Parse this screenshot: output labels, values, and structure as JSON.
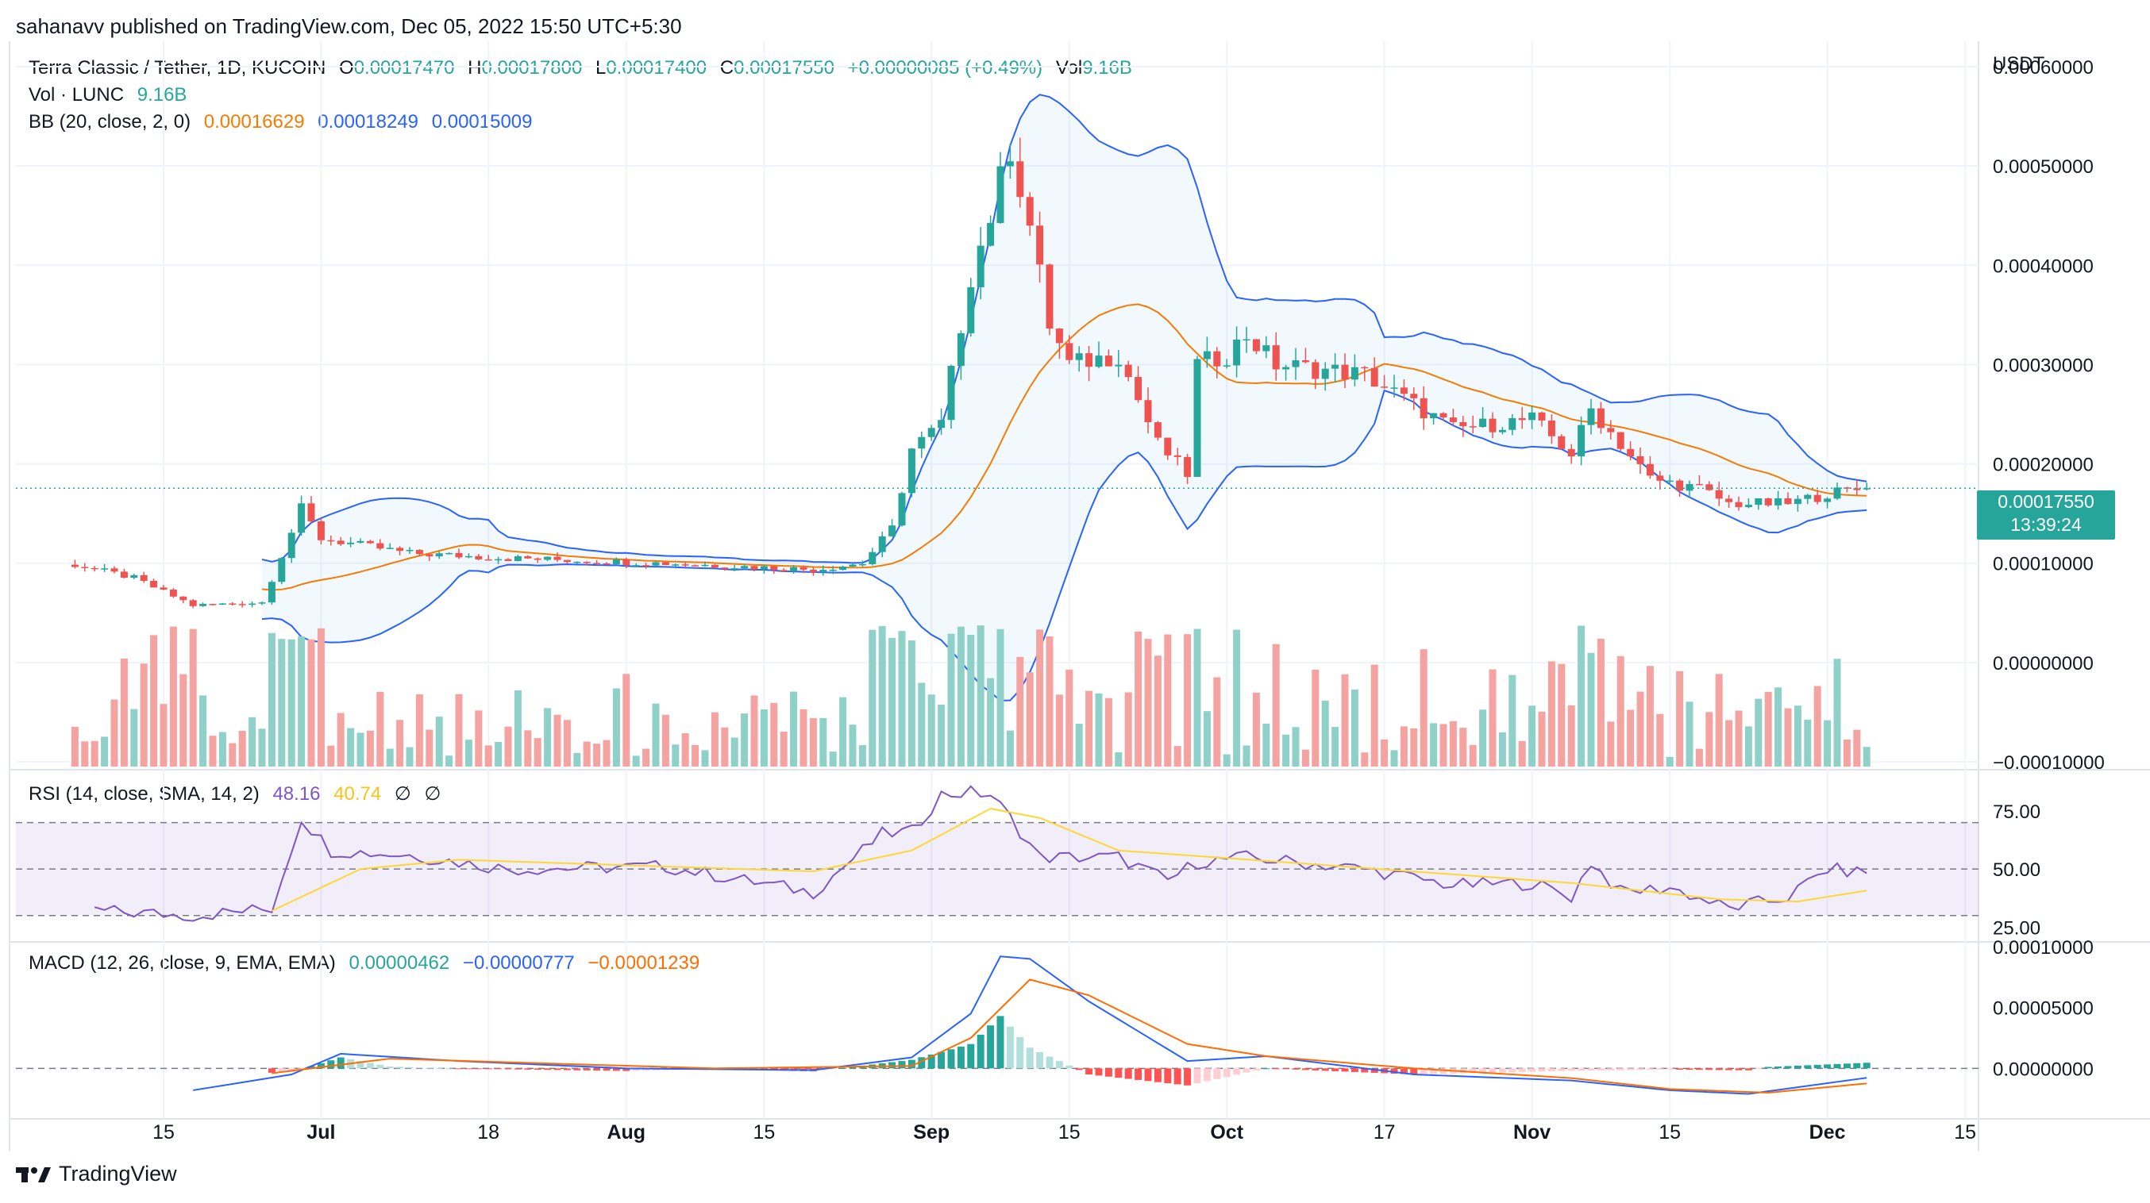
{
  "publisher": "sahanavv published on TradingView.com, Dec 05, 2022 15:50 UTC+5:30",
  "brand": "TradingView",
  "price_tag": {
    "price": "0.00017550",
    "countdown": "13:39:24"
  },
  "colors": {
    "up": "#26a69a",
    "down": "#ef5350",
    "bb_mid": "#f57c00",
    "bb_band": "#2962ff",
    "rsi": "#7e57c2",
    "rsi_ma": "#fdd835",
    "macd": "#2962ff",
    "signal": "#ff6d00",
    "vol_up": "#8fd0c8",
    "vol_down": "#f4a3a1"
  },
  "legend": {
    "symbol": "Terra Classic / Tether, 1D, KUCOIN",
    "o_label": "O",
    "o": "0.00017470",
    "h_label": "H",
    "h": "0.00017800",
    "l_label": "L",
    "l": "0.00017400",
    "c_label": "C",
    "c": "0.00017550",
    "change": "+0.00000085 (+0.49%)",
    "vol_label": "Vol",
    "vol": "9.16B",
    "vol_line_label": "Vol · LUNC",
    "vol_line_value": "9.16B",
    "bb_label": "BB (20, close, 2, 0)",
    "bb_basis": "0.00016629",
    "bb_upper": "0.00018249",
    "bb_lower": "0.00015009",
    "rsi_label": "RSI (14, close, SMA, 14, 2)",
    "rsi_value": "48.16",
    "rsi_ma_value": "40.74",
    "rsi_na1": "∅",
    "rsi_na2": "∅",
    "macd_label": "MACD (12, 26, close, 9, EMA, EMA)",
    "macd_hist": "0.00000462",
    "macd_value": "−0.00000777",
    "macd_signal": "−0.00001239"
  },
  "chart_data": [
    {
      "type": "candlestick",
      "currency": "USDT",
      "x_ticks": [
        "15",
        "Jul",
        "18",
        "Aug",
        "15",
        "Sep",
        "15",
        "Oct",
        "17",
        "Nov",
        "15",
        "Dec",
        "15"
      ],
      "y_ticks": [
        "0.00060000",
        "0.00050000",
        "0.00040000",
        "0.00030000",
        "0.00020000",
        "0.00010000",
        "0.00000000",
        "−0.00010000"
      ],
      "ylim": [
        -0.0001,
        0.0006
      ],
      "date_range": [
        "2022-06-06",
        "2022-12-05"
      ],
      "close_keypoints": [
        [
          "2022-06-06",
          9.85e-05
        ],
        [
          "2022-06-12",
          8.5e-05
        ],
        [
          "2022-06-18",
          5.75e-05
        ],
        [
          "2022-06-25",
          6.05e-05
        ],
        [
          "2022-06-29",
          0.000155
        ],
        [
          "2022-07-01",
          0.000125
        ],
        [
          "2022-07-10",
          0.00011
        ],
        [
          "2022-07-20",
          0.000105
        ],
        [
          "2022-08-05",
          0.0001
        ],
        [
          "2022-08-20",
          9.35e-05
        ],
        [
          "2022-08-25",
          0.0001
        ],
        [
          "2022-08-28",
          0.000135
        ],
        [
          "2022-08-30",
          0.000215
        ],
        [
          "2022-09-02",
          0.00024
        ],
        [
          "2022-09-05",
          0.00039
        ],
        [
          "2022-09-07",
          0.00045
        ],
        [
          "2022-09-09",
          0.00052
        ],
        [
          "2022-09-11",
          0.00044
        ],
        [
          "2022-09-13",
          0.00034
        ],
        [
          "2022-09-15",
          0.0003
        ],
        [
          "2022-09-20",
          0.00031
        ],
        [
          "2022-09-24",
          0.00022
        ],
        [
          "2022-09-27",
          0.00019
        ],
        [
          "2022-09-28",
          0.0003
        ],
        [
          "2022-10-01",
          0.00031
        ],
        [
          "2022-10-03",
          0.00033
        ],
        [
          "2022-10-06",
          0.0003
        ],
        [
          "2022-10-15",
          0.00029
        ],
        [
          "2022-10-24",
          0.000235
        ],
        [
          "2022-11-01",
          0.000245
        ],
        [
          "2022-11-05",
          0.00021
        ],
        [
          "2022-11-07",
          0.000255
        ],
        [
          "2022-11-10",
          0.00022
        ],
        [
          "2022-11-13",
          0.000185
        ],
        [
          "2022-11-18",
          0.000175
        ],
        [
          "2022-11-21",
          0.00016
        ],
        [
          "2022-11-27",
          0.00016
        ],
        [
          "2022-12-01",
          0.00017
        ],
        [
          "2022-12-05",
          0.0001755
        ]
      ],
      "last_ohlc": {
        "open": 0.0001747,
        "high": 0.000178,
        "low": 0.000174,
        "close": 0.0001755
      },
      "bollinger": {
        "period": 20,
        "mult": 2,
        "basis": 0.00016629,
        "upper": 0.00018249,
        "lower": 0.00015009
      },
      "volume_last": "9.16B",
      "grid": true
    },
    {
      "type": "line",
      "name": "RSI (14, close, SMA, 14, 2)",
      "y_ticks": [
        "75.00",
        "50.00",
        "25.00"
      ],
      "bands": [
        30,
        50,
        70
      ],
      "ylim": [
        20,
        90
      ],
      "last_rsi": 48.16,
      "last_ma": 40.74,
      "rsi_keypoints": [
        [
          "2022-06-08",
          32
        ],
        [
          "2022-06-18",
          30
        ],
        [
          "2022-06-26",
          33
        ],
        [
          "2022-06-29",
          72
        ],
        [
          "2022-07-02",
          58
        ],
        [
          "2022-07-10",
          56
        ],
        [
          "2022-07-20",
          50
        ],
        [
          "2022-08-05",
          51
        ],
        [
          "2022-08-20",
          40
        ],
        [
          "2022-08-27",
          65
        ],
        [
          "2022-08-30",
          66
        ],
        [
          "2022-09-02",
          82
        ],
        [
          "2022-09-05",
          83
        ],
        [
          "2022-09-07",
          82
        ],
        [
          "2022-09-09",
          72
        ],
        [
          "2022-09-12",
          55
        ],
        [
          "2022-09-20",
          55
        ],
        [
          "2022-09-25",
          45
        ],
        [
          "2022-09-28",
          53
        ],
        [
          "2022-10-03",
          55
        ],
        [
          "2022-10-15",
          50
        ],
        [
          "2022-10-24",
          43
        ],
        [
          "2022-11-01",
          44
        ],
        [
          "2022-11-05",
          38
        ],
        [
          "2022-11-07",
          53
        ],
        [
          "2022-11-10",
          40
        ],
        [
          "2022-11-15",
          42
        ],
        [
          "2022-11-21",
          33
        ],
        [
          "2022-11-27",
          38
        ],
        [
          "2022-12-01",
          50
        ],
        [
          "2022-12-05",
          48.16
        ]
      ],
      "ma_keypoints": [
        [
          "2022-06-26",
          32
        ],
        [
          "2022-07-05",
          50
        ],
        [
          "2022-07-15",
          54
        ],
        [
          "2022-08-20",
          49
        ],
        [
          "2022-08-30",
          58
        ],
        [
          "2022-09-07",
          76
        ],
        [
          "2022-09-12",
          72
        ],
        [
          "2022-09-20",
          58
        ],
        [
          "2022-10-10",
          52
        ],
        [
          "2022-11-05",
          44
        ],
        [
          "2022-11-20",
          37
        ],
        [
          "2022-11-28",
          36
        ],
        [
          "2022-12-05",
          40.74
        ]
      ]
    },
    {
      "type": "line",
      "name": "MACD (12, 26, close, 9, EMA, EMA)",
      "y_ticks": [
        "0.00010000",
        "0.00005000",
        "0.00000000"
      ],
      "ylim": [
        -3.5e-05,
        0.0001
      ],
      "last_histogram": 4.62e-06,
      "last_macd": -7.77e-06,
      "last_signal": -1.239e-05,
      "macd_keypoints": [
        [
          "2022-06-18",
          -1.8e-05
        ],
        [
          "2022-06-28",
          -5e-06
        ],
        [
          "2022-07-03",
          1.2e-05
        ],
        [
          "2022-07-15",
          6e-06
        ],
        [
          "2022-08-01",
          0.0
        ],
        [
          "2022-08-20",
          -1.5e-06
        ],
        [
          "2022-08-30",
          9e-06
        ],
        [
          "2022-09-05",
          4.5e-05
        ],
        [
          "2022-09-08",
          9.2e-05
        ],
        [
          "2022-09-11",
          9e-05
        ],
        [
          "2022-09-17",
          5.5e-05
        ],
        [
          "2022-09-27",
          6e-06
        ],
        [
          "2022-10-05",
          1e-05
        ],
        [
          "2022-10-20",
          -5e-06
        ],
        [
          "2022-11-05",
          -1e-05
        ],
        [
          "2022-11-15",
          -1.8e-05
        ],
        [
          "2022-11-23",
          -2.1e-05
        ],
        [
          "2022-12-05",
          -7.77e-06
        ]
      ],
      "signal_keypoints": [
        [
          "2022-06-26",
          -4e-06
        ],
        [
          "2022-07-08",
          8e-06
        ],
        [
          "2022-07-20",
          5e-06
        ],
        [
          "2022-08-10",
          0.0
        ],
        [
          "2022-08-30",
          2e-06
        ],
        [
          "2022-09-05",
          2.5e-05
        ],
        [
          "2022-09-11",
          7.3e-05
        ],
        [
          "2022-09-17",
          6e-05
        ],
        [
          "2022-09-27",
          2e-05
        ],
        [
          "2022-10-05",
          1e-05
        ],
        [
          "2022-10-20",
          0.0
        ],
        [
          "2022-11-05",
          -8e-06
        ],
        [
          "2022-11-15",
          -1.7e-05
        ],
        [
          "2022-11-25",
          -2e-05
        ],
        [
          "2022-12-05",
          -1.239e-05
        ]
      ]
    }
  ]
}
